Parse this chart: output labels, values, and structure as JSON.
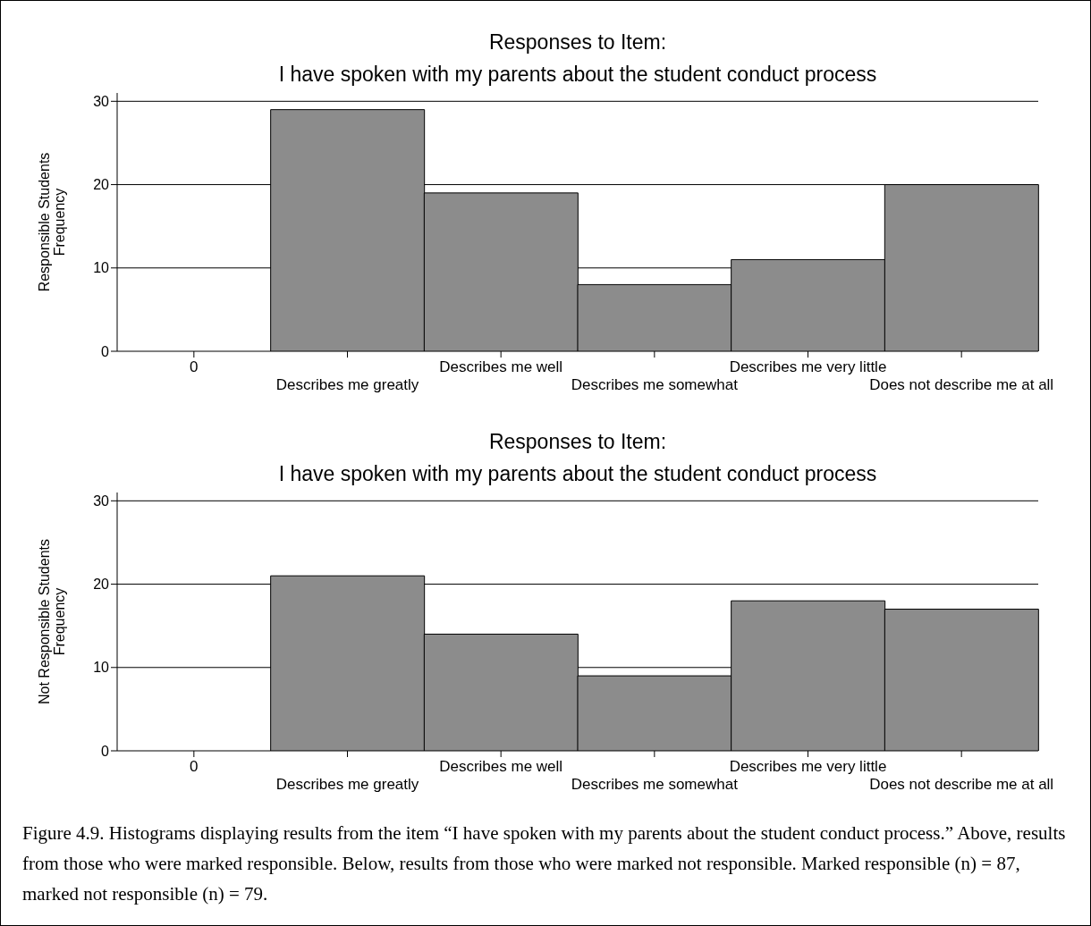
{
  "chart_data": [
    {
      "type": "bar",
      "title": "Responses to Item:\nI have spoken with my parents about the student conduct process",
      "ylabel": "Responsible Students\nFrequency",
      "categories": [
        "0",
        "Describes me greatly",
        "Describes me well",
        "Describes me somewhat",
        "Describes me very little",
        "Does not describe me at all"
      ],
      "values": [
        null,
        29,
        19,
        8,
        11,
        20
      ],
      "color": "#8c8c8c",
      "ylim": [
        0,
        31
      ],
      "yticks": [
        0,
        10,
        20,
        30
      ],
      "grid": "y"
    },
    {
      "type": "bar",
      "title": "Responses to Item:\nI have spoken with my parents about the student conduct process",
      "ylabel": "Not Responsible Students\nFrequency",
      "categories": [
        "0",
        "Describes me greatly",
        "Describes me well",
        "Describes me somewhat",
        "Describes me very little",
        "Does not describe me at all"
      ],
      "values": [
        null,
        21,
        14,
        9,
        18,
        17
      ],
      "color": "#8c8c8c",
      "ylim": [
        0,
        31
      ],
      "yticks": [
        0,
        10,
        20,
        30
      ],
      "grid": "y",
      "annotations": [
        "Figure 4.9. Histograms displaying results from the item “I have spoken with my parents about the student conduct process.” Above, results from those who were marked responsible. Below, results from those who were marked not responsible. Marked responsible (n) = 87, marked not responsible (n) = 79."
      ]
    }
  ]
}
